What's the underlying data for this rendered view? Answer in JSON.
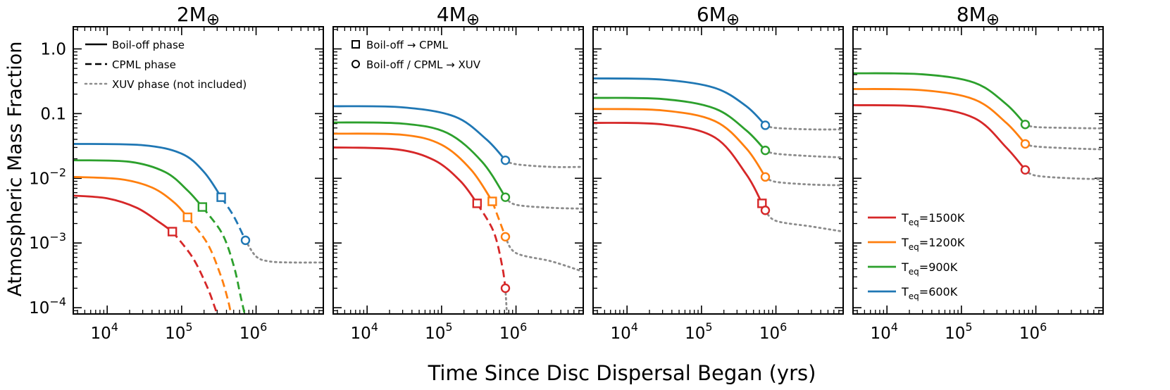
{
  "figure": {
    "ylabel": "Atmospheric Mass Fraction",
    "xlabel": "Time Since Disc Dispersal Began (yrs)"
  },
  "colors": {
    "1500": "#d62728",
    "1200": "#ff7f0e",
    "900": "#2ca02c",
    "600": "#1f77b4",
    "xuv": "#8c8c8c"
  },
  "legends": {
    "phase": [
      "Boil-off phase",
      "CPML phase",
      "XUV phase (not included)"
    ],
    "markers": [
      "Boil-off  →  CPML",
      "Boil-off / CPML  →  XUV"
    ],
    "temperature": [
      {
        "key": "1500",
        "label": "1500K"
      },
      {
        "key": "1200",
        "label": "1200K"
      },
      {
        "key": "900",
        "label": "900K"
      },
      {
        "key": "600",
        "label": "600K"
      }
    ],
    "temp_prefix": "T",
    "temp_sub": "eq",
    "temp_eq": "="
  },
  "chart_data": [
    {
      "type": "line",
      "title_num": "2M",
      "title_sym": "⊕",
      "xscale": "log",
      "yscale": "log",
      "xlim": [
        3500,
        8000000
      ],
      "ylim": [
        8e-05,
        2.2
      ],
      "x_ticks": [
        10000,
        100000,
        1000000
      ],
      "x_tick_labels": [
        {
          "base": "10",
          "exp": "4"
        },
        {
          "base": "10",
          "exp": "5"
        },
        {
          "base": "10",
          "exp": "6"
        }
      ],
      "y_ticks": [
        0.0001,
        0.001,
        0.01,
        0.1,
        1.0
      ],
      "y_tick_labels": [
        {
          "base": "10",
          "exp": "−4"
        },
        {
          "base": "10",
          "exp": "−3"
        },
        {
          "base": "10",
          "exp": "−2"
        },
        {
          "base": "0.1"
        },
        {
          "base": "1.0"
        }
      ],
      "series": [
        {
          "key": "600",
          "boiloff": [
            [
              3500,
              0.034
            ],
            [
              30000,
              0.0325
            ],
            [
              100000,
              0.024
            ],
            [
              200000,
              0.0125
            ],
            [
              340000,
              0.0051
            ]
          ],
          "cpml": [
            [
              340000,
              0.0051
            ],
            [
              500000,
              0.0026
            ],
            [
              720000,
              0.0011
            ]
          ],
          "xuv": [
            [
              720000,
              0.0011
            ],
            [
              1000000,
              0.00062
            ],
            [
              1500000,
              0.00052
            ],
            [
              3000000,
              0.0005
            ],
            [
              8000000,
              0.0005
            ]
          ],
          "square": [
            340000,
            0.0051
          ],
          "circle": [
            720000,
            0.0011
          ]
        },
        {
          "key": "900",
          "boiloff": [
            [
              3500,
              0.019
            ],
            [
              20000,
              0.018
            ],
            [
              60000,
              0.0125
            ],
            [
              120000,
              0.0065
            ],
            [
              190000,
              0.0036
            ]
          ],
          "cpml": [
            [
              190000,
              0.0036
            ],
            [
              350000,
              0.0014
            ],
            [
              500000,
              0.00045
            ],
            [
              620000,
              0.00015
            ],
            [
              720000,
              7e-05
            ]
          ],
          "xuv": [],
          "square": [
            190000,
            0.0036
          ]
        },
        {
          "key": "1200",
          "boiloff": [
            [
              3500,
              0.0105
            ],
            [
              15000,
              0.0097
            ],
            [
              40000,
              0.0072
            ],
            [
              80000,
              0.0042
            ],
            [
              120000,
              0.0025
            ]
          ],
          "cpml": [
            [
              120000,
              0.0025
            ],
            [
              220000,
              0.001
            ],
            [
              330000,
              0.00033
            ],
            [
              420000,
              0.00013
            ],
            [
              470000,
              7e-05
            ]
          ],
          "xuv": [],
          "square": [
            120000,
            0.0025
          ]
        },
        {
          "key": "1500",
          "boiloff": [
            [
              3500,
              0.0054
            ],
            [
              10000,
              0.0049
            ],
            [
              25000,
              0.0035
            ],
            [
              50000,
              0.0021
            ],
            [
              75000,
              0.0015
            ]
          ],
          "cpml": [
            [
              75000,
              0.0015
            ],
            [
              140000,
              0.0006
            ],
            [
              220000,
              0.00021
            ],
            [
              280000,
              0.0001
            ],
            [
              310000,
              7e-05
            ]
          ],
          "xuv": [],
          "square": [
            75000,
            0.0015
          ]
        }
      ]
    },
    {
      "type": "line",
      "title_num": "4M",
      "title_sym": "⊕",
      "xscale": "log",
      "yscale": "log",
      "xlim": [
        3500,
        8000000
      ],
      "ylim": [
        8e-05,
        2.2
      ],
      "x_ticks": [
        10000,
        100000,
        1000000
      ],
      "x_tick_labels": [
        {
          "base": "10",
          "exp": "4"
        },
        {
          "base": "10",
          "exp": "5"
        },
        {
          "base": "10",
          "exp": "6"
        }
      ],
      "y_ticks": [
        0.0001,
        0.001,
        0.01,
        0.1,
        1.0
      ],
      "y_tick_labels": [],
      "series": [
        {
          "key": "600",
          "boiloff": [
            [
              3500,
              0.13
            ],
            [
              30000,
              0.125
            ],
            [
              150000,
              0.09
            ],
            [
              400000,
              0.04
            ],
            [
              720000,
              0.019
            ]
          ],
          "cpml": [],
          "xuv": [
            [
              720000,
              0.019
            ],
            [
              1000000,
              0.0165
            ],
            [
              3000000,
              0.015
            ],
            [
              8000000,
              0.015
            ]
          ],
          "circle": [
            720000,
            0.019
          ]
        },
        {
          "key": "900",
          "boiloff": [
            [
              3500,
              0.073
            ],
            [
              30000,
              0.07
            ],
            [
              120000,
              0.05
            ],
            [
              350000,
              0.018
            ],
            [
              720000,
              0.0051
            ]
          ],
          "cpml": [],
          "xuv": [
            [
              720000,
              0.0051
            ],
            [
              1000000,
              0.0039
            ],
            [
              3000000,
              0.0035
            ],
            [
              8000000,
              0.0034
            ]
          ],
          "circle": [
            720000,
            0.0051
          ]
        },
        {
          "key": "1200",
          "boiloff": [
            [
              3500,
              0.049
            ],
            [
              30000,
              0.047
            ],
            [
              100000,
              0.033
            ],
            [
              250000,
              0.0135
            ],
            [
              480000,
              0.0044
            ]
          ],
          "cpml": [
            [
              480000,
              0.0044
            ],
            [
              720000,
              0.00125
            ]
          ],
          "xuv": [
            [
              720000,
              0.00125
            ],
            [
              1000000,
              0.0007
            ],
            [
              3000000,
              0.00052
            ],
            [
              8000000,
              0.00036
            ]
          ],
          "square": [
            480000,
            0.0044
          ],
          "circle": [
            720000,
            0.00125
          ]
        },
        {
          "key": "1500",
          "boiloff": [
            [
              3500,
              0.03
            ],
            [
              25000,
              0.028
            ],
            [
              80000,
              0.019
            ],
            [
              180000,
              0.009
            ],
            [
              300000,
              0.0041
            ]
          ],
          "cpml": [
            [
              300000,
              0.0041
            ],
            [
              500000,
              0.0015
            ],
            [
              650000,
              0.00045
            ],
            [
              720000,
              0.0002
            ]
          ],
          "xuv": [
            [
              720000,
              0.0002
            ],
            [
              760000,
              7e-05
            ]
          ],
          "square": [
            300000,
            0.0041
          ],
          "circle": [
            720000,
            0.0002
          ]
        }
      ]
    },
    {
      "type": "line",
      "title_num": "6M",
      "title_sym": "⊕",
      "xscale": "log",
      "yscale": "log",
      "xlim": [
        3500,
        8000000
      ],
      "ylim": [
        8e-05,
        2.2
      ],
      "x_ticks": [
        10000,
        100000,
        1000000
      ],
      "x_tick_labels": [
        {
          "base": "10",
          "exp": "4"
        },
        {
          "base": "10",
          "exp": "5"
        },
        {
          "base": "10",
          "exp": "6"
        }
      ],
      "y_ticks": [
        0.0001,
        0.001,
        0.01,
        0.1,
        1.0
      ],
      "y_tick_labels": [],
      "series": [
        {
          "key": "600",
          "boiloff": [
            [
              3500,
              0.35
            ],
            [
              30000,
              0.335
            ],
            [
              150000,
              0.25
            ],
            [
              400000,
              0.13
            ],
            [
              720000,
              0.066
            ]
          ],
          "cpml": [],
          "xuv": [
            [
              720000,
              0.066
            ],
            [
              1000000,
              0.06
            ],
            [
              3000000,
              0.057
            ],
            [
              8000000,
              0.057
            ]
          ],
          "circle": [
            720000,
            0.066
          ]
        },
        {
          "key": "900",
          "boiloff": [
            [
              3500,
              0.175
            ],
            [
              30000,
              0.168
            ],
            [
              150000,
              0.12
            ],
            [
              400000,
              0.055
            ],
            [
              720000,
              0.027
            ]
          ],
          "cpml": [],
          "xuv": [
            [
              720000,
              0.027
            ],
            [
              1000000,
              0.024
            ],
            [
              3000000,
              0.022
            ],
            [
              8000000,
              0.021
            ]
          ],
          "circle": [
            720000,
            0.027
          ]
        },
        {
          "key": "1200",
          "boiloff": [
            [
              3500,
              0.118
            ],
            [
              30000,
              0.112
            ],
            [
              150000,
              0.077
            ],
            [
              400000,
              0.029
            ],
            [
              720000,
              0.0105
            ]
          ],
          "cpml": [],
          "xuv": [
            [
              720000,
              0.0105
            ],
            [
              1000000,
              0.0088
            ],
            [
              3000000,
              0.008
            ],
            [
              8000000,
              0.0078
            ]
          ],
          "circle": [
            720000,
            0.0105
          ]
        },
        {
          "key": "1500",
          "boiloff": [
            [
              3500,
              0.072
            ],
            [
              30000,
              0.068
            ],
            [
              150000,
              0.043
            ],
            [
              400000,
              0.0115
            ],
            [
              650000,
              0.0041
            ]
          ],
          "cpml": [
            [
              650000,
              0.0041
            ],
            [
              720000,
              0.0032
            ]
          ],
          "xuv": [
            [
              720000,
              0.0032
            ],
            [
              1000000,
              0.0022
            ],
            [
              3000000,
              0.0018
            ],
            [
              8000000,
              0.0015
            ]
          ],
          "square": [
            650000,
            0.0041
          ],
          "circle": [
            720000,
            0.0032
          ]
        }
      ]
    },
    {
      "type": "line",
      "title_num": "8M",
      "title_sym": "⊕",
      "xscale": "log",
      "yscale": "log",
      "xlim": [
        3500,
        8000000
      ],
      "ylim": [
        8e-05,
        2.2
      ],
      "x_ticks": [
        10000,
        100000,
        1000000
      ],
      "x_tick_labels": [
        {
          "base": "10",
          "exp": "4"
        },
        {
          "base": "10",
          "exp": "5"
        },
        {
          "base": "10",
          "exp": "6"
        }
      ],
      "y_ticks": [
        0.0001,
        0.001,
        0.01,
        0.1,
        1.0
      ],
      "y_tick_labels": [],
      "series": [
        {
          "key": "900",
          "boiloff": [
            [
              3500,
              0.42
            ],
            [
              30000,
              0.405
            ],
            [
              150000,
              0.3
            ],
            [
              400000,
              0.14
            ],
            [
              720000,
              0.068
            ]
          ],
          "cpml": [],
          "xuv": [
            [
              720000,
              0.068
            ],
            [
              1000000,
              0.062
            ],
            [
              3000000,
              0.06
            ],
            [
              8000000,
              0.059
            ]
          ],
          "circle": [
            720000,
            0.068
          ]
        },
        {
          "key": "1200",
          "boiloff": [
            [
              3500,
              0.24
            ],
            [
              30000,
              0.23
            ],
            [
              150000,
              0.165
            ],
            [
              400000,
              0.072
            ],
            [
              720000,
              0.034
            ]
          ],
          "cpml": [],
          "xuv": [
            [
              720000,
              0.034
            ],
            [
              1000000,
              0.031
            ],
            [
              3000000,
              0.029
            ],
            [
              8000000,
              0.028
            ]
          ],
          "circle": [
            720000,
            0.034
          ]
        },
        {
          "key": "1500",
          "boiloff": [
            [
              3500,
              0.135
            ],
            [
              30000,
              0.128
            ],
            [
              150000,
              0.085
            ],
            [
              400000,
              0.03
            ],
            [
              720000,
              0.0135
            ]
          ],
          "cpml": [],
          "xuv": [
            [
              720000,
              0.0135
            ],
            [
              1000000,
              0.011
            ],
            [
              3000000,
              0.01
            ],
            [
              8000000,
              0.0097
            ]
          ],
          "circle": [
            720000,
            0.0135
          ]
        }
      ]
    }
  ]
}
